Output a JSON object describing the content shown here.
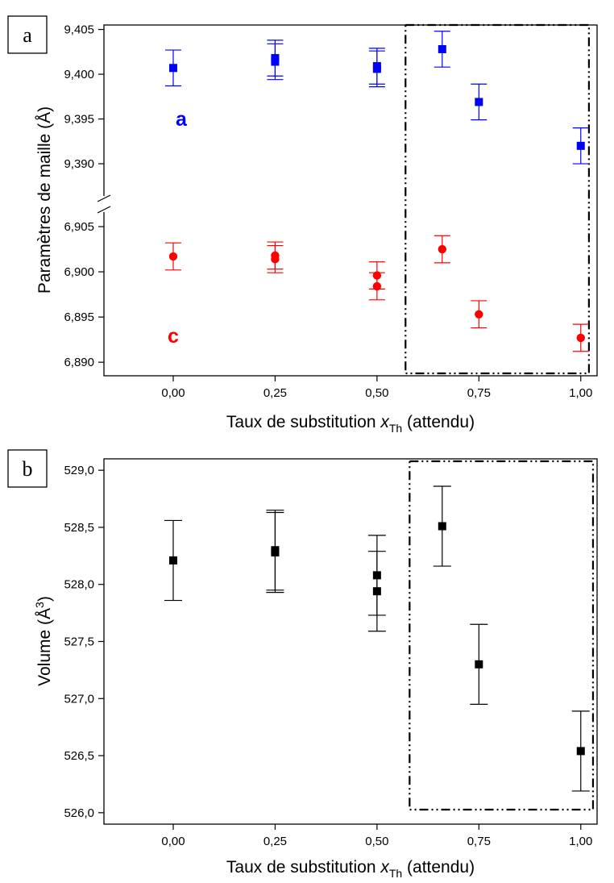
{
  "chart_data": [
    {
      "type": "scatter",
      "panel_label": "a",
      "ylabel": "Paramètres de maille (Å)",
      "xlabel_prefix": "Taux de substitution ",
      "xlabel_var": "x",
      "xlabel_sub": "Th",
      "xlabel_suffix": " (attendu)",
      "xlim": [
        -0.17,
        1.04
      ],
      "x_ticks": [
        0,
        0.25,
        0.5,
        0.75,
        1.0
      ],
      "x_tick_labels": [
        "0,00",
        "0,25",
        "0,50",
        "0,75",
        "1,00"
      ],
      "axis_break": true,
      "upper_ylim": [
        9.3855,
        9.4055
      ],
      "upper_ticks": [
        9.39,
        9.395,
        9.4,
        9.405
      ],
      "upper_tick_labels": [
        "9,390",
        "9,395",
        "9,400",
        "9,405"
      ],
      "lower_ylim": [
        6.8885,
        6.9075
      ],
      "lower_ticks": [
        6.89,
        6.895,
        6.9,
        6.905
      ],
      "lower_tick_labels": [
        "6,890",
        "6,895",
        "6,900",
        "6,905"
      ],
      "highlight_x_range": [
        0.57,
        1.02
      ],
      "series": [
        {
          "name": "a",
          "color": "#0000ff",
          "marker": "square",
          "x": [
            0,
            0.25,
            0.25,
            0.5,
            0.5,
            0.66,
            0.75,
            1.0
          ],
          "y": [
            9.4007,
            9.4018,
            9.4014,
            9.4009,
            9.4006,
            9.4028,
            9.3969,
            9.392
          ],
          "err": [
            0.002,
            0.002,
            0.002,
            0.002,
            0.002,
            0.002,
            0.002,
            0.002
          ]
        },
        {
          "name": "c",
          "color": "#ff0000",
          "marker": "circle",
          "x": [
            0,
            0.25,
            0.25,
            0.5,
            0.5,
            0.66,
            0.75,
            1.0
          ],
          "y": [
            6.9017,
            6.9018,
            6.9014,
            6.8996,
            6.8984,
            6.9025,
            6.8953,
            6.8927
          ],
          "err": [
            0.0015,
            0.0015,
            0.0015,
            0.0015,
            0.0015,
            0.0015,
            0.0015,
            0.0015
          ]
        }
      ]
    },
    {
      "type": "scatter",
      "panel_label": "b",
      "ylabel_base": "Volume (Å",
      "ylabel_sup": "3",
      "ylabel_end": ")",
      "xlabel_prefix": "Taux de substitution ",
      "xlabel_var": "x",
      "xlabel_sub": "Th",
      "xlabel_suffix": " (attendu)",
      "xlim": [
        -0.17,
        1.04
      ],
      "ylim": [
        525.9,
        529.1
      ],
      "x_ticks": [
        0,
        0.25,
        0.5,
        0.75,
        1.0
      ],
      "x_tick_labels": [
        "0,00",
        "0,25",
        "0,50",
        "0,75",
        "1,00"
      ],
      "y_ticks": [
        526.0,
        526.5,
        527.0,
        527.5,
        528.0,
        528.5,
        529.0
      ],
      "y_tick_labels": [
        "526,0",
        "526,5",
        "527,0",
        "527,5",
        "528,0",
        "528,5",
        "529,0"
      ],
      "highlight_x_range": [
        0.58,
        1.03
      ],
      "series": [
        {
          "color": "#000000",
          "marker": "square",
          "x": [
            0,
            0.25,
            0.25,
            0.5,
            0.5,
            0.66,
            0.75,
            1.0
          ],
          "y": [
            528.21,
            528.3,
            528.28,
            528.08,
            527.94,
            528.51,
            527.3,
            526.54
          ],
          "err": [
            0.35,
            0.35,
            0.35,
            0.35,
            0.35,
            0.35,
            0.35,
            0.35
          ]
        }
      ]
    }
  ]
}
